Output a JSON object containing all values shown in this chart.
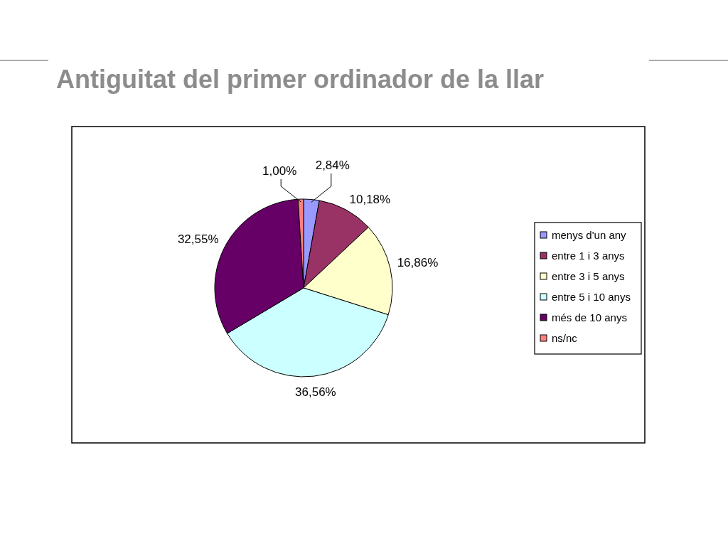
{
  "chart_data": {
    "type": "pie",
    "title": "Antiguitat del primer ordinador de la llar",
    "categories": [
      "menys d'un any",
      "entre 1 i 3 anys",
      "entre 3 i 5 anys",
      "entre 5 i 10 anys",
      "més de 10 anys",
      "ns/nc"
    ],
    "values": [
      2.84,
      10.18,
      16.86,
      36.56,
      32.55,
      1.0
    ],
    "colors": [
      "#9999ff",
      "#993366",
      "#ffffcc",
      "#ccffff",
      "#660066",
      "#ff8080"
    ],
    "value_labels": [
      "2,84%",
      "10,18%",
      "16,86%",
      "36,56%",
      "32,55%",
      "1,00%"
    ],
    "legend": "right"
  }
}
